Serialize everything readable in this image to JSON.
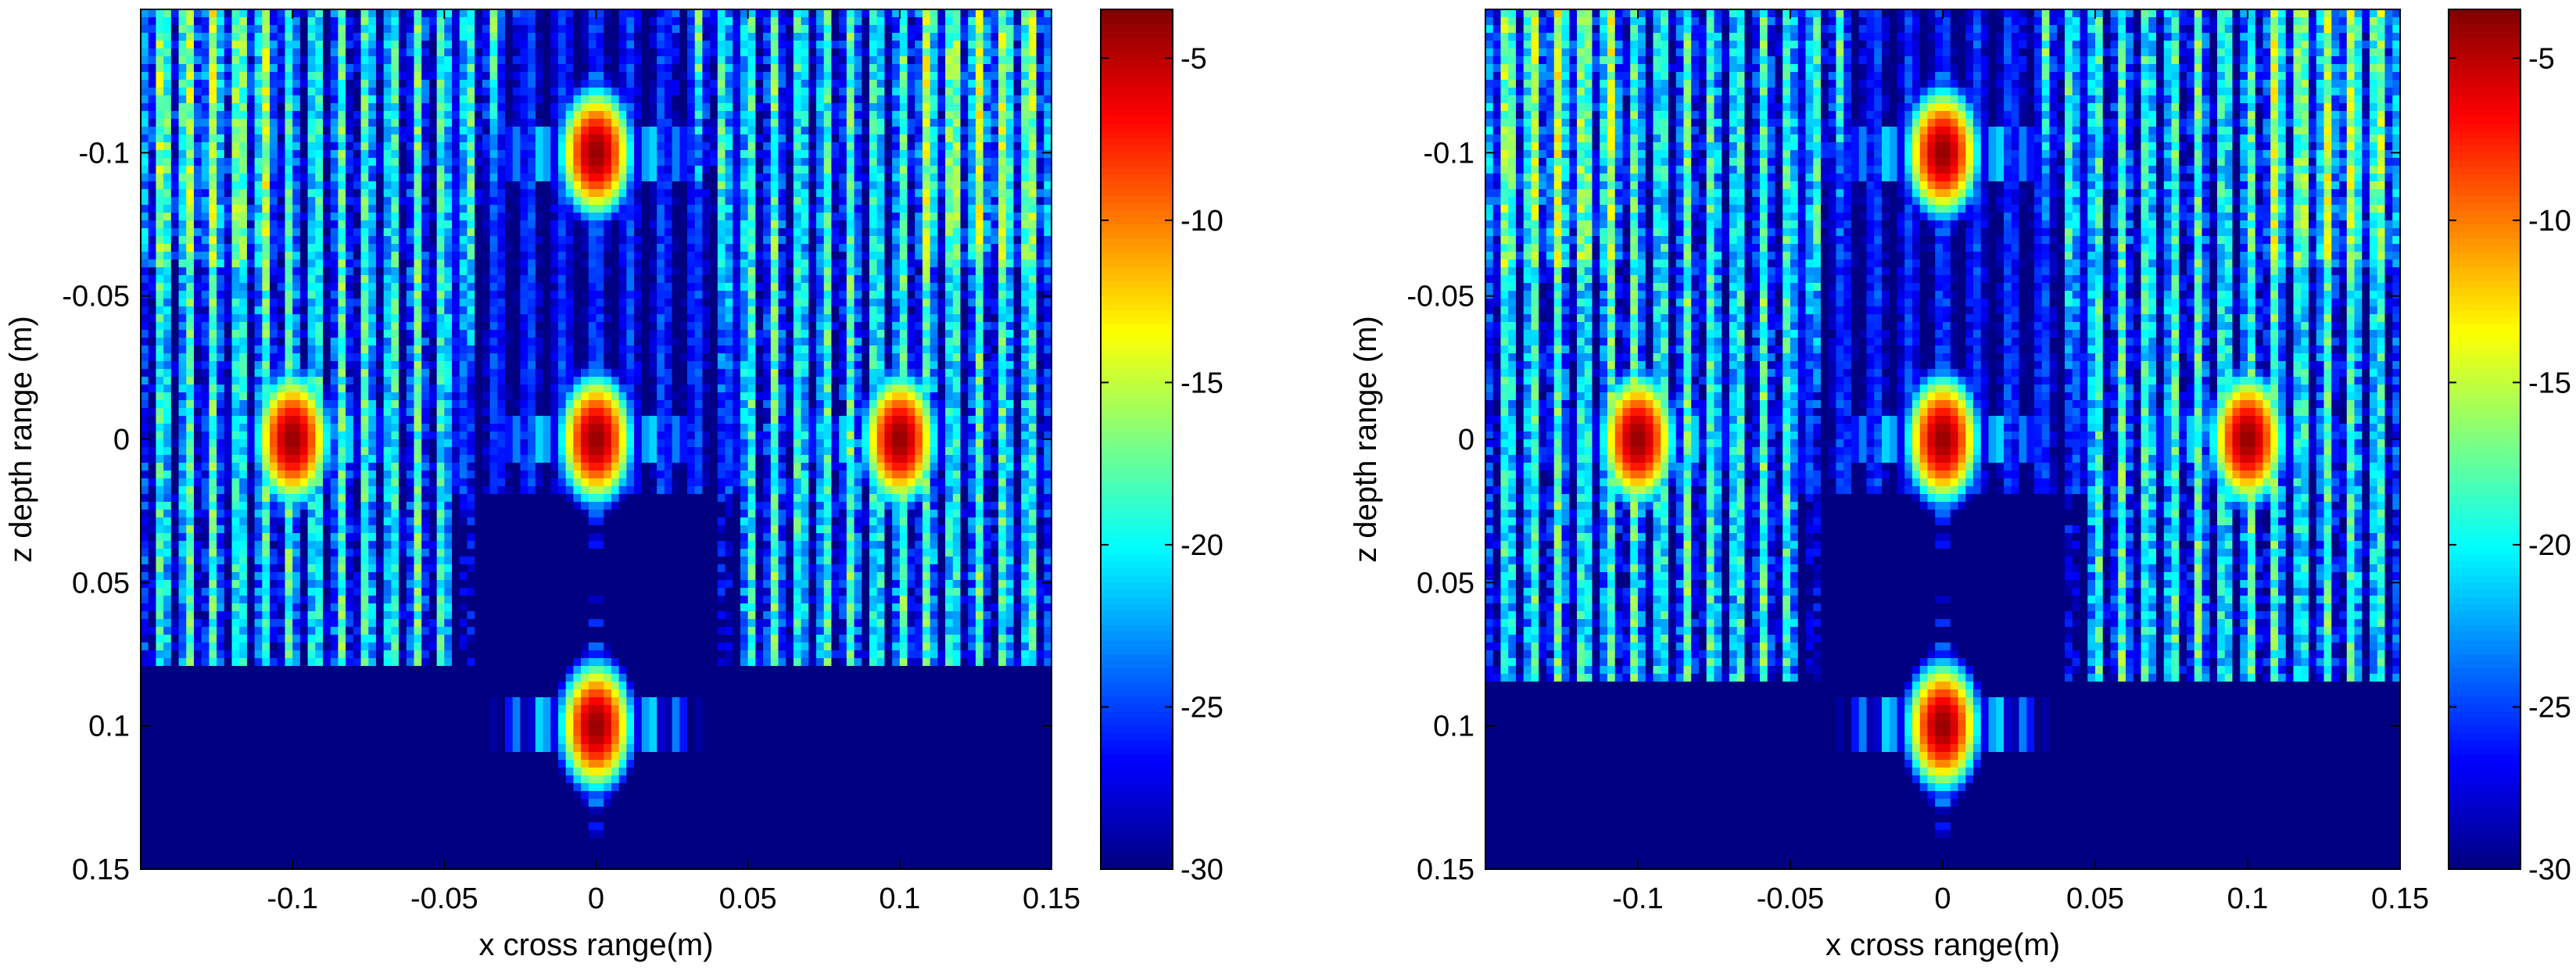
{
  "figure_title": "",
  "colormap": "jet",
  "background_color": "#ffffff",
  "chart_data": [
    {
      "type": "heatmap",
      "title": "",
      "xlabel": "x cross range(m)",
      "ylabel": "z depth range (m)",
      "xlim": [
        -0.15,
        0.15
      ],
      "ylim": [
        -0.15,
        0.15
      ],
      "y_reversed": true,
      "xticks": [
        -0.1,
        -0.05,
        0,
        0.05,
        0.1,
        0.15
      ],
      "xtick_labels": [
        "-0.1",
        "-0.05",
        "0",
        "0.05",
        "0.1",
        "0.15"
      ],
      "yticks": [
        -0.1,
        -0.05,
        0,
        0.05,
        0.1,
        0.15
      ],
      "ytick_labels": [
        "-0.1",
        "-0.05",
        "0",
        "0.05",
        "0.1",
        "0.15"
      ],
      "color_range": [
        -30,
        -3.5
      ],
      "colorbar_ticks": [
        -5,
        -10,
        -15,
        -20,
        -25,
        -30
      ],
      "colorbar_tick_labels": [
        "-5",
        "-10",
        "-15",
        "-20",
        "-25",
        "-30"
      ],
      "targets": [
        {
          "x": 0,
          "z": -0.1,
          "peak_db": -4
        },
        {
          "x": -0.1,
          "z": 0,
          "peak_db": -4
        },
        {
          "x": 0,
          "z": 0,
          "peak_db": -4
        },
        {
          "x": 0.1,
          "z": 0,
          "peak_db": -4
        },
        {
          "x": 0,
          "z": 0.1,
          "peak_db": -4
        }
      ],
      "clutter_cutoff_z": 0.08
    },
    {
      "type": "heatmap",
      "title": "",
      "xlabel": "x cross range(m)",
      "ylabel": "z depth range (m)",
      "xlim": [
        -0.15,
        0.15
      ],
      "ylim": [
        -0.15,
        0.15
      ],
      "y_reversed": true,
      "xticks": [
        -0.1,
        -0.05,
        0,
        0.05,
        0.1,
        0.15
      ],
      "xtick_labels": [
        "-0.1",
        "-0.05",
        "0",
        "0.05",
        "0.1",
        "0.15"
      ],
      "yticks": [
        -0.1,
        -0.05,
        0,
        0.05,
        0.1,
        0.15
      ],
      "ytick_labels": [
        "-0.1",
        "-0.05",
        "0",
        "0.05",
        "0.1",
        "0.15"
      ],
      "color_range": [
        -30,
        -3.5
      ],
      "colorbar_ticks": [
        -5,
        -10,
        -15,
        -20,
        -25,
        -30
      ],
      "colorbar_tick_labels": [
        "-5",
        "-10",
        "-15",
        "-20",
        "-25",
        "-30"
      ],
      "targets": [
        {
          "x": 0,
          "z": -0.1,
          "peak_db": -4
        },
        {
          "x": -0.1,
          "z": 0,
          "peak_db": -4
        },
        {
          "x": 0,
          "z": 0,
          "peak_db": -4
        },
        {
          "x": 0.1,
          "z": 0,
          "peak_db": -4
        },
        {
          "x": 0,
          "z": 0.1,
          "peak_db": -4
        }
      ],
      "clutter_cutoff_z": 0.085
    }
  ]
}
